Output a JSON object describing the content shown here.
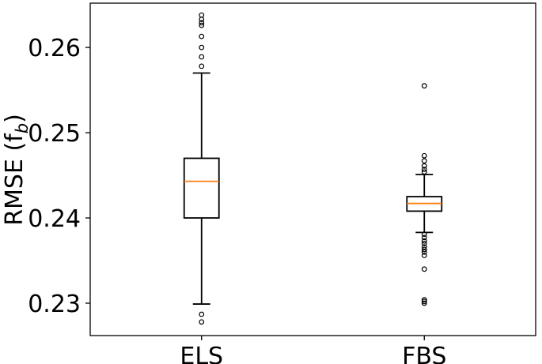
{
  "chart_data": {
    "type": "box",
    "title": "",
    "xlabel": "",
    "ylabel": "RMSE (f",
    "ylabel_subscript": "b",
    "ylabel_close": ")",
    "ylim": [
      0.2262,
      0.2652
    ],
    "yticks": [
      0.23,
      0.24,
      0.25,
      0.26
    ],
    "ytick_labels": [
      "0.23",
      "0.24",
      "0.25",
      "0.26"
    ],
    "grid": false,
    "categories": [
      "ELS",
      "FBS"
    ],
    "boxes": [
      {
        "name": "ELS",
        "whisker_low": 0.2299,
        "q1": 0.24,
        "median": 0.2443,
        "q3": 0.247,
        "whisker_high": 0.257,
        "outliers": [
          0.2278,
          0.2287,
          0.2578,
          0.2589,
          0.26,
          0.2613,
          0.2626,
          0.2629,
          0.2633,
          0.2638
        ]
      },
      {
        "name": "FBS",
        "whisker_low": 0.2383,
        "q1": 0.2408,
        "median": 0.2417,
        "q3": 0.2425,
        "whisker_high": 0.2451,
        "outliers": [
          0.23,
          0.2302,
          0.2304,
          0.234,
          0.2356,
          0.236,
          0.2363,
          0.2366,
          0.237,
          0.2373,
          0.2377,
          0.2381,
          0.2454,
          0.2457,
          0.2461,
          0.2467,
          0.2473,
          0.2555
        ]
      }
    ],
    "colors": {
      "box": "#000000",
      "median": "#ff7f0e",
      "flier": "#000000"
    }
  }
}
